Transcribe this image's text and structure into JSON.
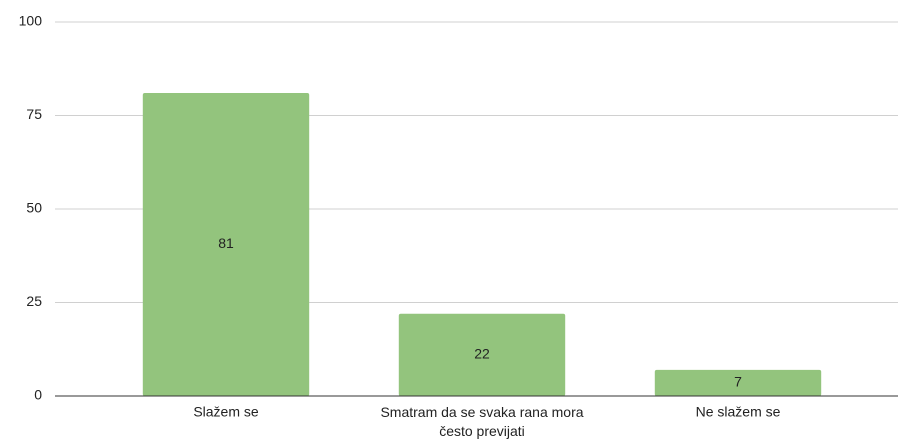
{
  "chart_data": {
    "type": "bar",
    "categories": [
      "Slažem se",
      "Smatram da se svaka rana mora često previjati",
      "Ne slažem se"
    ],
    "values": [
      81,
      22,
      7
    ],
    "color": "#93c47d",
    "ylim": [
      0,
      100
    ],
    "yticks": [
      0,
      25,
      50,
      75,
      100
    ],
    "grid": true
  }
}
